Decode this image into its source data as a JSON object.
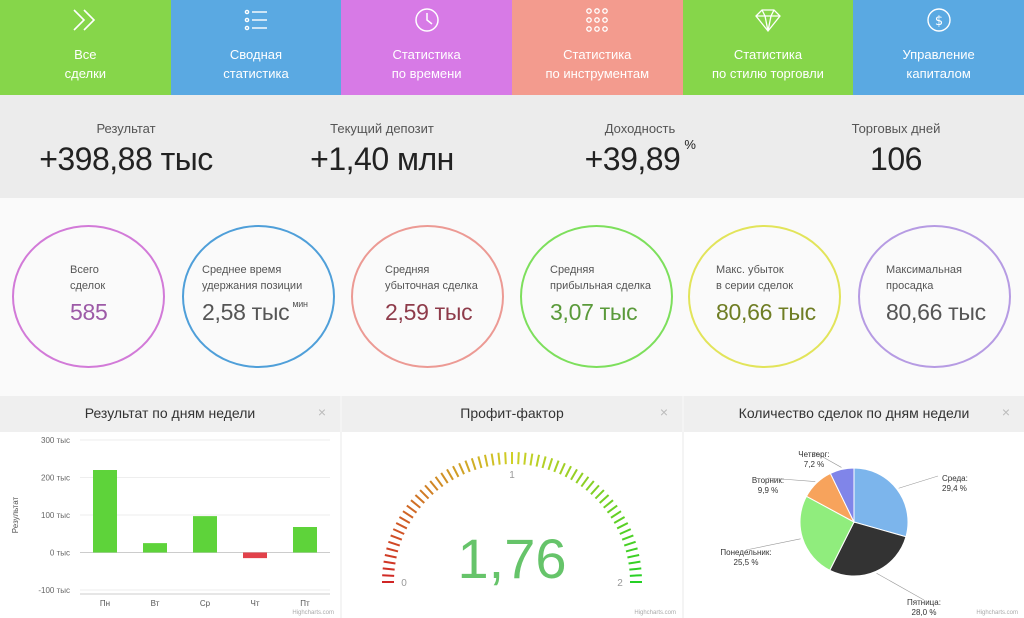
{
  "nav": [
    {
      "label": "Все\nсделки",
      "icon": "chevrons-right-icon",
      "color": "#86d64a"
    },
    {
      "label": "Сводная\nстатистика",
      "icon": "list-icon",
      "color": "#5aa9e2"
    },
    {
      "label": "Статистика\nпо времени",
      "icon": "clock-icon",
      "color": "#d77ae6"
    },
    {
      "label": "Статистика\nпо инструментам",
      "icon": "grid-icon",
      "color": "#f39b8e"
    },
    {
      "label": "Статистика\nпо стилю торговли",
      "icon": "diamond-icon",
      "color": "#86d64a"
    },
    {
      "label": "Управление\nкапиталом",
      "icon": "dollar-icon",
      "color": "#5aa9e2"
    }
  ],
  "summary": {
    "result": {
      "label": "Результат",
      "value": "+398,88 тыс"
    },
    "deposit": {
      "label": "Текущий депозит",
      "value": "+1,40 млн"
    },
    "yield": {
      "label": "Доходность",
      "value": "+39,89",
      "unit": "%"
    },
    "days": {
      "label": "Торговых дней",
      "value": "106"
    }
  },
  "circles": [
    {
      "title": "Всего\nсделок",
      "value": "585",
      "unit": "",
      "border": "#d27ad8",
      "valueColor": "#9d5aa7"
    },
    {
      "title": "Среднее время\nудержания позиции",
      "value": "2,58 тыс",
      "unit": "мин",
      "border": "#4f9fd9",
      "valueColor": "#555"
    },
    {
      "title": "Средняя\nубыточная сделка",
      "value": "2,59 тыс",
      "unit": "",
      "border": "#ec9a94",
      "valueColor": "#8e3b4a"
    },
    {
      "title": "Средняя\nприбыльная сделка",
      "value": "3,07 тыс",
      "unit": "",
      "border": "#7ddf5c",
      "valueColor": "#5a9a3a"
    },
    {
      "title": "Макс. убыток\nв серии сделок",
      "value": "80,66 тыс",
      "unit": "",
      "border": "#e2e45a",
      "valueColor": "#6f7d24"
    },
    {
      "title": "Максимальная\nпросадка",
      "value": "80,66 тыс",
      "unit": "",
      "border": "#b69be3",
      "valueColor": "#555"
    }
  ],
  "panels": {
    "weekday_result": {
      "title": "Результат по дням недели",
      "close": "×",
      "credit": "Highcharts.com"
    },
    "profit_factor": {
      "title": "Профит-фактор",
      "close": "×",
      "credit": "Highcharts.com"
    },
    "weekday_count": {
      "title": "Количество сделок по дням недели",
      "close": "×",
      "credit": "Highcharts.com"
    }
  },
  "chart_data": [
    {
      "type": "bar",
      "title": "Результат по дням недели",
      "ylabel": "Результат",
      "categories": [
        "Пн",
        "Вт",
        "Ср",
        "Чт",
        "Пт"
      ],
      "values": [
        220,
        25,
        97,
        -15,
        68
      ],
      "ylim": [
        -100,
        300
      ],
      "yticks": [
        300,
        200,
        100,
        0,
        -100
      ],
      "ytick_labels": [
        "300 тыс",
        "200 тыс",
        "100 тыс",
        "0 тыс",
        "-100 тыс"
      ],
      "positive_color": "#5ed33a",
      "negative_color": "#e2414a"
    },
    {
      "type": "gauge",
      "title": "Профит-фактор",
      "value": 1.76,
      "value_label": "1,76",
      "range": [
        0,
        2
      ],
      "tick_labels": [
        "0",
        "1",
        "2"
      ]
    },
    {
      "type": "pie",
      "title": "Количество сделок по дням недели",
      "slices": [
        {
          "name": "Среда",
          "value": 29.4,
          "label": "29,4 %",
          "color": "#7cb5ec"
        },
        {
          "name": "Пятница",
          "value": 28.0,
          "label": "28,0 %",
          "color": "#333333"
        },
        {
          "name": "Понедельник",
          "value": 25.5,
          "label": "25,5 %",
          "color": "#90ed7d"
        },
        {
          "name": "Вторник",
          "value": 9.9,
          "label": "9,9 %",
          "color": "#f7a35c"
        },
        {
          "name": "Четверг",
          "value": 7.2,
          "label": "7,2 %",
          "color": "#8085e9"
        }
      ]
    }
  ]
}
